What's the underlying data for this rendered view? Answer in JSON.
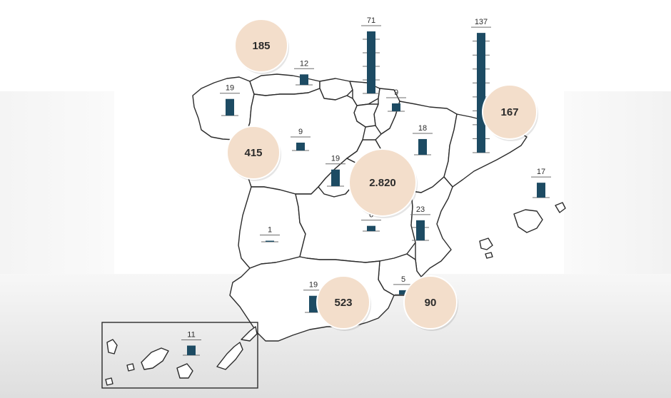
{
  "map": {
    "bars": [
      {
        "id": "asturias",
        "value": 12
      },
      {
        "id": "navarra",
        "value": 71
      },
      {
        "id": "galicia",
        "value": 19
      },
      {
        "id": "la-rioja",
        "value": 9
      },
      {
        "id": "cataluna",
        "value": 137
      },
      {
        "id": "castilla-leon",
        "value": 9
      },
      {
        "id": "aragon",
        "value": 18
      },
      {
        "id": "madrid",
        "value": 19
      },
      {
        "id": "baleares",
        "value": 17
      },
      {
        "id": "castilla-la-mancha",
        "value": 6
      },
      {
        "id": "valencia",
        "value": 23
      },
      {
        "id": "extremadura",
        "value": 1
      },
      {
        "id": "murcia",
        "value": 5
      },
      {
        "id": "andalucia",
        "value": 19
      },
      {
        "id": "canarias",
        "value": 11
      }
    ],
    "bubbles": [
      {
        "id": "asturias",
        "label": "185"
      },
      {
        "id": "galicia",
        "label": "415"
      },
      {
        "id": "cataluna",
        "label": "167"
      },
      {
        "id": "madrid",
        "label": "2.820"
      },
      {
        "id": "andalucia",
        "label": "523"
      },
      {
        "id": "murcia",
        "label": "90"
      }
    ],
    "bar_color": "#1d4b63",
    "bubble_color": "#f3decb"
  }
}
